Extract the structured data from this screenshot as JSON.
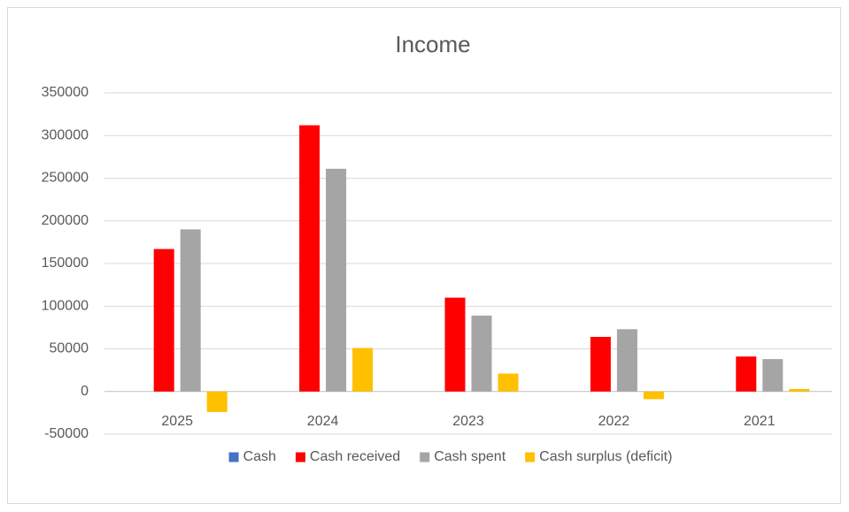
{
  "chart_data": {
    "type": "bar",
    "title": "Income",
    "categories": [
      "2025",
      "2024",
      "2023",
      "2022",
      "2021"
    ],
    "series": [
      {
        "name": "Cash",
        "color": "#4472c4",
        "values": [
          0,
          0,
          0,
          0,
          0
        ]
      },
      {
        "name": "Cash received",
        "color": "#ff0000",
        "values": [
          167000,
          312000,
          110000,
          64000,
          41000
        ]
      },
      {
        "name": "Cash spent",
        "color": "#a5a5a5",
        "values": [
          190000,
          261000,
          89000,
          73000,
          38000
        ]
      },
      {
        "name": "Cash surplus (deficit)",
        "color": "#ffc000",
        "values": [
          -24000,
          51000,
          21000,
          -9000,
          3000
        ]
      }
    ],
    "ylim": [
      -50000,
      350000
    ],
    "yticks": [
      -50000,
      0,
      50000,
      100000,
      150000,
      200000,
      250000,
      300000,
      350000
    ],
    "grid": true,
    "legend": "bottom"
  }
}
